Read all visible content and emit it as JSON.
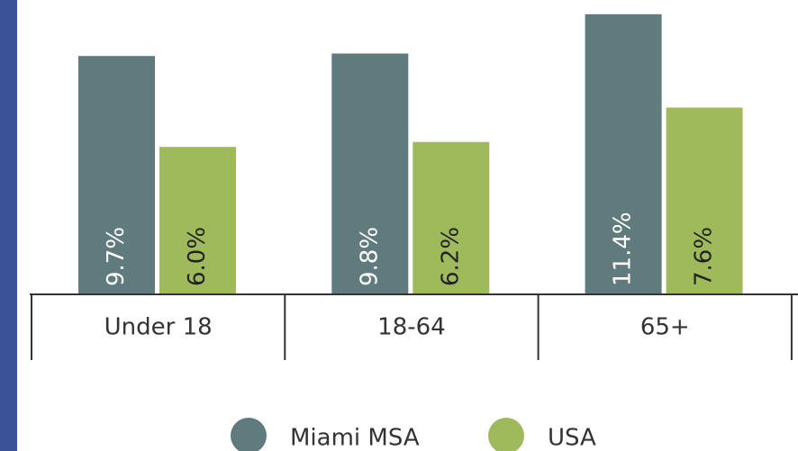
{
  "chart_data": {
    "type": "bar",
    "categories": [
      "Under 18",
      "18-64",
      "65+"
    ],
    "series": [
      {
        "name": "Miami MSA",
        "color": "#607b7d",
        "values": [
          9.7,
          9.8,
          11.4
        ],
        "value_labels": [
          "9.7%",
          "9.8%",
          "11.4%"
        ]
      },
      {
        "name": "USA",
        "color": "#9fba5a",
        "values": [
          6.0,
          6.2,
          7.6
        ],
        "value_labels": [
          "6.0%",
          "6.2%",
          "7.6%"
        ]
      }
    ]
  }
}
